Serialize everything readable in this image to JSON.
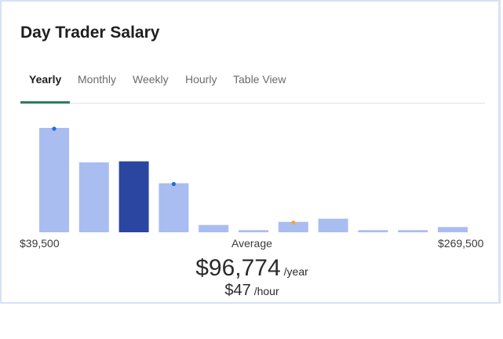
{
  "card": {
    "title": "Day Trader Salary"
  },
  "tabs": [
    {
      "label": "Yearly",
      "active": true
    },
    {
      "label": "Monthly",
      "active": false
    },
    {
      "label": "Weekly",
      "active": false
    },
    {
      "label": "Hourly",
      "active": false
    },
    {
      "label": "Table View",
      "active": false
    }
  ],
  "colors": {
    "bar": "#a9bdf0",
    "bar_highlight": "#2a46a0",
    "marker_blue": "#1f6fd6",
    "marker_orange": "#f2a33a",
    "tab_underline": "#2e7d5b"
  },
  "chart_data": {
    "type": "bar",
    "title": "",
    "xlabel": "",
    "ylabel": "",
    "x_min_label": "$39,500",
    "x_mid_label": "Average",
    "x_max_label": "$269,500",
    "values": [
      100,
      67,
      68,
      47,
      7,
      2,
      10,
      13,
      2,
      2,
      5
    ],
    "highlight_index": 2,
    "markers": [
      {
        "bar_index": 0,
        "color": "blue"
      },
      {
        "bar_index": 3,
        "color": "blue"
      },
      {
        "bar_index": 6,
        "color": "orange"
      }
    ],
    "ylim": [
      0,
      100
    ],
    "grid": false
  },
  "salary": {
    "yearly_value": "$96,774",
    "yearly_unit": "/year",
    "hourly_value": "$47",
    "hourly_unit": "/hour"
  }
}
